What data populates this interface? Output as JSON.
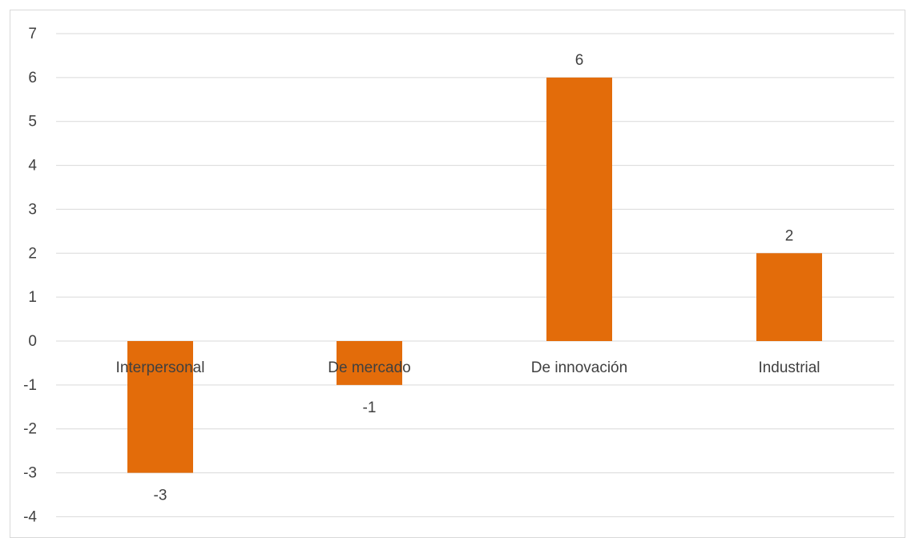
{
  "chart_data": {
    "type": "bar",
    "categories": [
      "Interpersonal",
      "De mercado",
      "De innovación",
      "Industrial"
    ],
    "series": [
      {
        "values": [
          -3,
          -1,
          6,
          2
        ],
        "color": "#E36C0A"
      }
    ],
    "data_labels": [
      "-3",
      "-1",
      "6",
      "2"
    ],
    "ylim": [
      -4,
      7
    ],
    "yticks": [
      7,
      6,
      5,
      4,
      3,
      2,
      1,
      0,
      -1,
      -2,
      -3,
      -4
    ],
    "grid": true,
    "legend": "none",
    "colors": {
      "bar": "#E36C0A",
      "grid": "#d9d9d9",
      "text": "#404040"
    }
  }
}
